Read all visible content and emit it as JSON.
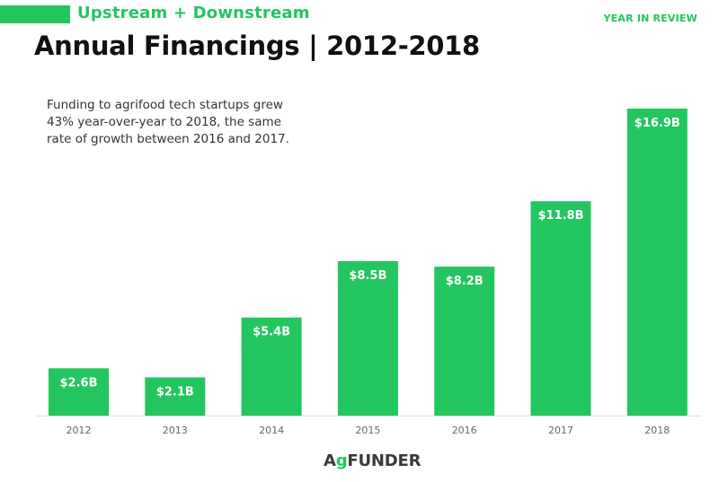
{
  "header": {
    "subtitle": "Upstream + Downstream",
    "tag": "YEAR IN REVIEW",
    "title": "Annual Financings  |  2012-2018"
  },
  "description": "Funding to agrifood tech startups grew 43% year-over-year to 2018, the same rate of growth between 2016 and 2017.",
  "logo": {
    "brand": "AGFUNDER",
    "text": "FUNDER"
  },
  "colors": {
    "accent": "#22c55e",
    "title": "#111111"
  },
  "chart_data": {
    "type": "bar",
    "categories": [
      "2012",
      "2013",
      "2014",
      "2015",
      "2016",
      "2017",
      "2018"
    ],
    "values": [
      2.6,
      2.1,
      5.4,
      8.5,
      8.2,
      11.8,
      16.9
    ],
    "value_labels": [
      "$2.6B",
      "$2.1B",
      "$5.4B",
      "$8.5B",
      "$8.2B",
      "$11.8B",
      "$16.9B"
    ],
    "title": "",
    "xlabel": "",
    "ylabel": "",
    "ylim": [
      0,
      16.9
    ],
    "grid": false,
    "legend": "none"
  }
}
